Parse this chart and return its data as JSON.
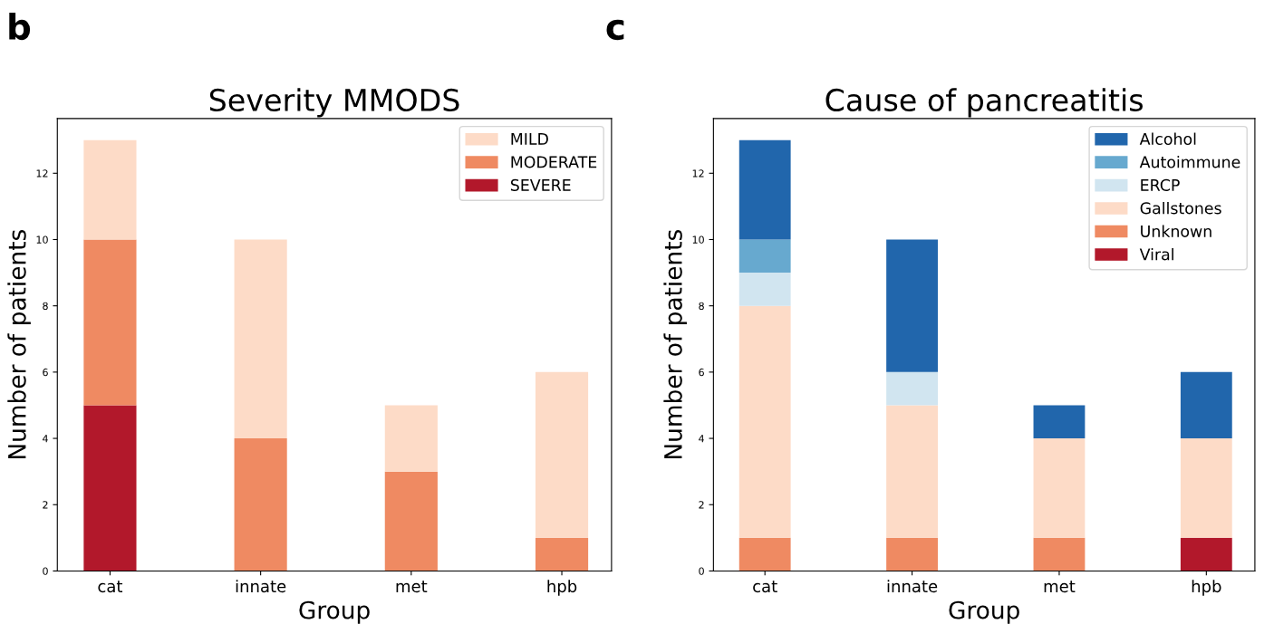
{
  "chart_data": [
    {
      "type": "bar",
      "stacked": true,
      "title": "Severity MMODS",
      "xlabel": "Group",
      "ylabel": "Number of patients",
      "annotations": [
        "b"
      ],
      "legend": "top right",
      "grid": false,
      "categories": [
        "cat",
        "innate",
        "met",
        "hpb"
      ],
      "ylim": [
        0,
        13.65
      ],
      "yticks": [
        0,
        2,
        4,
        6,
        8,
        10,
        12
      ],
      "series": [
        {
          "name": "SEVERE",
          "color": "#b2182b",
          "values": [
            5,
            0,
            0,
            0
          ]
        },
        {
          "name": "MODERATE",
          "color": "#ef8a62",
          "values": [
            5,
            4,
            3,
            1
          ]
        },
        {
          "name": "MILD",
          "color": "#fddbc7",
          "values": [
            3,
            6,
            2,
            5
          ]
        }
      ]
    },
    {
      "type": "bar",
      "stacked": true,
      "title": "Cause of pancreatitis",
      "xlabel": "Group",
      "ylabel": "Number of patients",
      "annotations": [
        "c"
      ],
      "legend": "top right",
      "grid": false,
      "categories": [
        "cat",
        "innate",
        "met",
        "hpb"
      ],
      "ylim": [
        0,
        13.65
      ],
      "yticks": [
        0,
        2,
        4,
        6,
        8,
        10,
        12
      ],
      "series": [
        {
          "name": "Viral",
          "color": "#b2182b",
          "values": [
            0,
            0,
            0,
            1
          ]
        },
        {
          "name": "Unknown",
          "color": "#ef8a62",
          "values": [
            1,
            1,
            1,
            0
          ]
        },
        {
          "name": "Gallstones",
          "color": "#fddbc7",
          "values": [
            7,
            4,
            3,
            3
          ]
        },
        {
          "name": "ERCP",
          "color": "#d1e5f0",
          "values": [
            1,
            1,
            0,
            0
          ]
        },
        {
          "name": "Autoimmune",
          "color": "#67a9cf",
          "values": [
            1,
            0,
            0,
            0
          ]
        },
        {
          "name": "Alcohol",
          "color": "#2166ac",
          "values": [
            3,
            4,
            1,
            2
          ]
        }
      ]
    }
  ]
}
